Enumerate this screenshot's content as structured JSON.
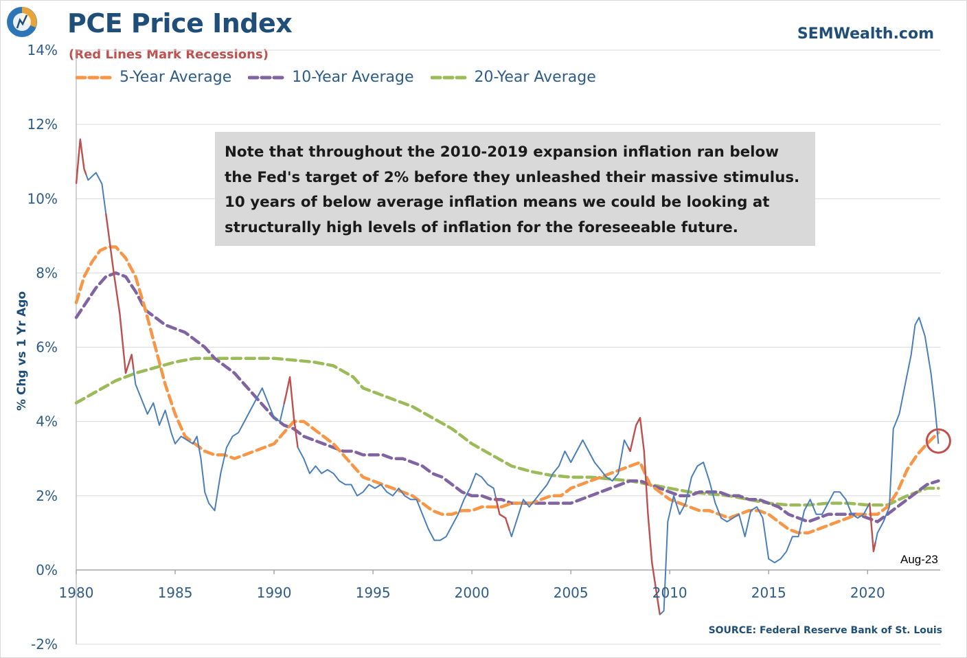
{
  "header": {
    "title": "PCE Price Index",
    "subtitle": "(Red Lines Mark Recessions)",
    "brand": "SEMWealth.com",
    "source": "SOURCE:  Federal Reserve Bank of St. Louis"
  },
  "note": "Note that throughout the 2010-2019 expansion inflation ran below\nthe Fed's target of 2% before they unleashed their massive stimulus.\n10 years of below average inflation means we could be looking at\nstructurally high levels of inflation for the foreseeable future.",
  "colors": {
    "pce": "#4a7ebb",
    "recession": "#c0504d",
    "avg5": "#f79646",
    "avg10": "#8064a2",
    "avg20": "#9bbb59",
    "circle": "#c0504d",
    "grid": "#d9d9d9"
  },
  "chart_data": {
    "type": "line",
    "title": "PCE Price Index",
    "subtitle": "(Red Lines Mark Recessions)",
    "ylabel": "% Chg vs 1 Yr Ago",
    "xlabel": "",
    "xlim": [
      1980,
      2023.67
    ],
    "ylim": [
      -2,
      14
    ],
    "y_ticks": [
      -2,
      0,
      2,
      4,
      6,
      8,
      10,
      12,
      14
    ],
    "y_tick_labels": [
      "-2%",
      "0%",
      "2%",
      "4%",
      "6%",
      "8%",
      "10%",
      "12%",
      "14%"
    ],
    "x_ticks": [
      1980,
      1985,
      1990,
      1995,
      2000,
      2005,
      2010,
      2015,
      2020
    ],
    "x_tick_labels": [
      "1980",
      "1985",
      "1990",
      "1995",
      "2000",
      "2005",
      "2010",
      "2015",
      "2020"
    ],
    "grid": true,
    "legend_position": "top-left",
    "annotation": {
      "label": "Aug-23",
      "x": 2023.58,
      "y": 3.4
    },
    "recessions": [
      [
        1980.0,
        1980.5
      ],
      [
        1981.5,
        1982.9
      ],
      [
        1990.5,
        1991.2
      ],
      [
        2001.2,
        2001.9
      ],
      [
        2007.9,
        2009.5
      ],
      [
        2020.1,
        2020.4
      ]
    ],
    "series": [
      {
        "name": "PCE Price Index",
        "style": "solid",
        "x": [
          1980.0,
          1980.2,
          1980.4,
          1980.6,
          1980.8,
          1981.0,
          1981.3,
          1981.6,
          1981.9,
          1982.2,
          1982.5,
          1982.8,
          1983.0,
          1983.3,
          1983.6,
          1983.9,
          1984.2,
          1984.5,
          1984.8,
          1985.0,
          1985.3,
          1985.6,
          1985.9,
          1986.1,
          1986.3,
          1986.5,
          1986.7,
          1987.0,
          1987.3,
          1987.6,
          1987.9,
          1988.2,
          1988.5,
          1988.8,
          1989.1,
          1989.4,
          1989.7,
          1990.0,
          1990.3,
          1990.6,
          1990.8,
          1991.0,
          1991.2,
          1991.5,
          1991.8,
          1992.1,
          1992.4,
          1992.7,
          1993.0,
          1993.3,
          1993.6,
          1993.9,
          1994.2,
          1994.5,
          1994.8,
          1995.1,
          1995.4,
          1995.7,
          1996.0,
          1996.3,
          1996.6,
          1996.9,
          1997.2,
          1997.5,
          1997.8,
          1998.1,
          1998.4,
          1998.7,
          1999.0,
          1999.3,
          1999.6,
          1999.9,
          2000.2,
          2000.5,
          2000.8,
          2001.1,
          2001.4,
          2001.7,
          2002.0,
          2002.3,
          2002.6,
          2002.9,
          2003.2,
          2003.5,
          2003.8,
          2004.1,
          2004.4,
          2004.7,
          2005.0,
          2005.3,
          2005.6,
          2005.9,
          2006.2,
          2006.5,
          2006.8,
          2007.1,
          2007.4,
          2007.7,
          2008.0,
          2008.3,
          2008.5,
          2008.7,
          2008.9,
          2009.1,
          2009.3,
          2009.5,
          2009.7,
          2009.9,
          2010.2,
          2010.5,
          2010.8,
          2011.1,
          2011.4,
          2011.7,
          2012.0,
          2012.3,
          2012.6,
          2012.9,
          2013.2,
          2013.5,
          2013.8,
          2014.1,
          2014.4,
          2014.7,
          2015.0,
          2015.3,
          2015.6,
          2015.9,
          2016.2,
          2016.5,
          2016.8,
          2017.1,
          2017.4,
          2017.7,
          2018.0,
          2018.3,
          2018.6,
          2018.9,
          2019.2,
          2019.5,
          2019.8,
          2020.1,
          2020.3,
          2020.5,
          2020.8,
          2021.1,
          2021.3,
          2021.6,
          2021.9,
          2022.2,
          2022.4,
          2022.6,
          2022.9,
          2023.2,
          2023.4,
          2023.58
        ],
        "y": [
          10.4,
          11.6,
          10.8,
          10.5,
          10.6,
          10.7,
          10.4,
          9.2,
          8.0,
          6.9,
          5.3,
          5.8,
          5.0,
          4.6,
          4.2,
          4.5,
          3.9,
          4.3,
          3.7,
          3.4,
          3.6,
          3.5,
          3.4,
          3.6,
          3.0,
          2.1,
          1.8,
          1.6,
          2.6,
          3.3,
          3.6,
          3.7,
          4.0,
          4.3,
          4.6,
          4.9,
          4.5,
          4.1,
          4.0,
          4.7,
          5.2,
          4.1,
          3.3,
          3.0,
          2.6,
          2.8,
          2.6,
          2.7,
          2.6,
          2.4,
          2.3,
          2.3,
          2.0,
          2.1,
          2.3,
          2.2,
          2.3,
          2.1,
          2.0,
          2.2,
          2.0,
          1.9,
          1.9,
          1.5,
          1.1,
          0.8,
          0.8,
          0.9,
          1.2,
          1.5,
          1.9,
          2.2,
          2.6,
          2.5,
          2.3,
          2.2,
          1.5,
          1.4,
          0.9,
          1.4,
          1.9,
          1.7,
          1.9,
          2.1,
          2.3,
          2.6,
          2.8,
          3.2,
          2.9,
          3.2,
          3.5,
          3.2,
          2.9,
          2.7,
          2.5,
          2.4,
          2.6,
          3.5,
          3.2,
          3.9,
          4.1,
          3.2,
          1.5,
          0.2,
          -0.5,
          -1.2,
          -1.1,
          1.3,
          2.0,
          1.5,
          1.8,
          2.5,
          2.8,
          2.9,
          2.4,
          1.8,
          1.4,
          1.3,
          1.4,
          1.5,
          0.9,
          1.6,
          1.7,
          1.4,
          0.3,
          0.2,
          0.3,
          0.5,
          0.9,
          0.9,
          1.6,
          1.9,
          1.5,
          1.5,
          1.8,
          2.1,
          2.1,
          1.9,
          1.5,
          1.4,
          1.5,
          1.8,
          0.5,
          1.0,
          1.3,
          1.7,
          3.8,
          4.2,
          5.0,
          5.8,
          6.6,
          6.8,
          6.3,
          5.3,
          4.4,
          3.4
        ]
      },
      {
        "name": "5-Year Average",
        "style": "dashed",
        "x": [
          1980.0,
          1980.4,
          1980.8,
          1981.2,
          1981.6,
          1982.0,
          1982.5,
          1983.0,
          1983.5,
          1984.0,
          1984.5,
          1985.0,
          1985.5,
          1986.0,
          1986.5,
          1987.0,
          1987.5,
          1988.0,
          1988.5,
          1989.0,
          1989.5,
          1990.0,
          1990.5,
          1991.0,
          1991.5,
          1992.0,
          1992.5,
          1993.0,
          1993.5,
          1994.0,
          1994.5,
          1995.0,
          1995.5,
          1996.0,
          1996.5,
          1997.0,
          1997.5,
          1998.0,
          1998.5,
          1999.0,
          1999.5,
          2000.0,
          2000.5,
          2001.0,
          2001.5,
          2002.0,
          2002.5,
          2003.0,
          2003.5,
          2004.0,
          2004.5,
          2005.0,
          2005.5,
          2006.0,
          2006.5,
          2007.0,
          2007.5,
          2008.0,
          2008.5,
          2009.0,
          2009.5,
          2010.0,
          2010.5,
          2011.0,
          2011.5,
          2012.0,
          2012.5,
          2013.0,
          2013.5,
          2014.0,
          2014.5,
          2015.0,
          2015.5,
          2016.0,
          2016.5,
          2017.0,
          2017.5,
          2018.0,
          2018.5,
          2019.0,
          2019.5,
          2020.0,
          2020.5,
          2021.0,
          2021.5,
          2022.0,
          2022.5,
          2023.0,
          2023.58
        ],
        "y": [
          7.2,
          7.9,
          8.3,
          8.6,
          8.7,
          8.7,
          8.4,
          7.9,
          7.0,
          6.0,
          5.0,
          4.2,
          3.6,
          3.4,
          3.2,
          3.1,
          3.1,
          3.0,
          3.1,
          3.2,
          3.3,
          3.4,
          3.7,
          4.0,
          4.0,
          3.8,
          3.6,
          3.4,
          3.1,
          2.8,
          2.5,
          2.4,
          2.3,
          2.2,
          2.1,
          2.0,
          1.8,
          1.6,
          1.5,
          1.5,
          1.6,
          1.6,
          1.7,
          1.7,
          1.7,
          1.8,
          1.8,
          1.8,
          1.9,
          2.0,
          2.0,
          2.2,
          2.3,
          2.4,
          2.5,
          2.6,
          2.7,
          2.8,
          2.9,
          2.3,
          2.1,
          1.9,
          1.8,
          1.7,
          1.6,
          1.6,
          1.5,
          1.4,
          1.5,
          1.6,
          1.6,
          1.5,
          1.3,
          1.1,
          1.0,
          1.0,
          1.1,
          1.2,
          1.3,
          1.4,
          1.5,
          1.5,
          1.5,
          1.7,
          2.1,
          2.7,
          3.1,
          3.4,
          3.7
        ]
      },
      {
        "name": "10-Year Average",
        "style": "dashed",
        "x": [
          1980.0,
          1980.5,
          1981.0,
          1981.5,
          1982.0,
          1982.5,
          1983.0,
          1983.5,
          1984.0,
          1984.5,
          1985.0,
          1985.5,
          1986.0,
          1986.5,
          1987.0,
          1987.5,
          1988.0,
          1988.5,
          1989.0,
          1989.5,
          1990.0,
          1990.5,
          1991.0,
          1991.5,
          1992.0,
          1992.5,
          1993.0,
          1993.5,
          1994.0,
          1994.5,
          1995.0,
          1995.5,
          1996.0,
          1996.5,
          1997.0,
          1997.5,
          1998.0,
          1998.5,
          1999.0,
          1999.5,
          2000.0,
          2000.5,
          2001.0,
          2001.5,
          2002.0,
          2002.5,
          2003.0,
          2003.5,
          2004.0,
          2004.5,
          2005.0,
          2005.5,
          2006.0,
          2006.5,
          2007.0,
          2007.5,
          2008.0,
          2008.5,
          2009.0,
          2009.5,
          2010.0,
          2010.5,
          2011.0,
          2011.5,
          2012.0,
          2012.5,
          2013.0,
          2013.5,
          2014.0,
          2014.5,
          2015.0,
          2015.5,
          2016.0,
          2016.5,
          2017.0,
          2017.5,
          2018.0,
          2018.5,
          2019.0,
          2019.5,
          2020.0,
          2020.5,
          2021.0,
          2021.5,
          2022.0,
          2022.5,
          2023.0,
          2023.58
        ],
        "y": [
          6.8,
          7.2,
          7.6,
          7.9,
          8.0,
          7.9,
          7.5,
          7.0,
          6.8,
          6.6,
          6.5,
          6.4,
          6.2,
          6.0,
          5.7,
          5.5,
          5.3,
          5.0,
          4.7,
          4.4,
          4.1,
          3.9,
          3.8,
          3.6,
          3.5,
          3.4,
          3.3,
          3.2,
          3.2,
          3.1,
          3.1,
          3.1,
          3.0,
          3.0,
          2.9,
          2.8,
          2.6,
          2.5,
          2.3,
          2.1,
          2.0,
          2.0,
          1.9,
          1.9,
          1.8,
          1.8,
          1.8,
          1.8,
          1.8,
          1.8,
          1.8,
          1.9,
          2.0,
          2.1,
          2.2,
          2.3,
          2.4,
          2.4,
          2.3,
          2.2,
          2.1,
          2.0,
          2.0,
          2.1,
          2.1,
          2.1,
          2.0,
          2.0,
          1.9,
          1.9,
          1.8,
          1.7,
          1.5,
          1.4,
          1.3,
          1.4,
          1.5,
          1.5,
          1.5,
          1.5,
          1.4,
          1.3,
          1.5,
          1.7,
          1.9,
          2.1,
          2.3,
          2.4
        ]
      },
      {
        "name": "20-Year Average",
        "style": "dashed",
        "x": [
          1980.0,
          1981.0,
          1982.0,
          1983.0,
          1984.0,
          1985.0,
          1986.0,
          1987.0,
          1988.0,
          1989.0,
          1990.0,
          1991.0,
          1992.0,
          1993.0,
          1994.0,
          1994.5,
          1995.0,
          1996.0,
          1997.0,
          1998.0,
          1999.0,
          2000.0,
          2001.0,
          2002.0,
          2003.0,
          2004.0,
          2005.0,
          2006.0,
          2007.0,
          2008.0,
          2009.0,
          2010.0,
          2011.0,
          2012.0,
          2013.0,
          2014.0,
          2015.0,
          2016.0,
          2017.0,
          2018.0,
          2019.0,
          2020.0,
          2021.0,
          2022.0,
          2023.0,
          2023.58
        ],
        "y": [
          4.5,
          4.8,
          5.1,
          5.3,
          5.45,
          5.6,
          5.7,
          5.7,
          5.7,
          5.7,
          5.7,
          5.65,
          5.6,
          5.5,
          5.2,
          4.9,
          4.8,
          4.6,
          4.4,
          4.1,
          3.8,
          3.4,
          3.1,
          2.8,
          2.65,
          2.55,
          2.5,
          2.5,
          2.45,
          2.4,
          2.3,
          2.2,
          2.1,
          2.05,
          2.0,
          1.9,
          1.8,
          1.75,
          1.75,
          1.8,
          1.8,
          1.75,
          1.75,
          2.0,
          2.2,
          2.2
        ]
      }
    ]
  }
}
